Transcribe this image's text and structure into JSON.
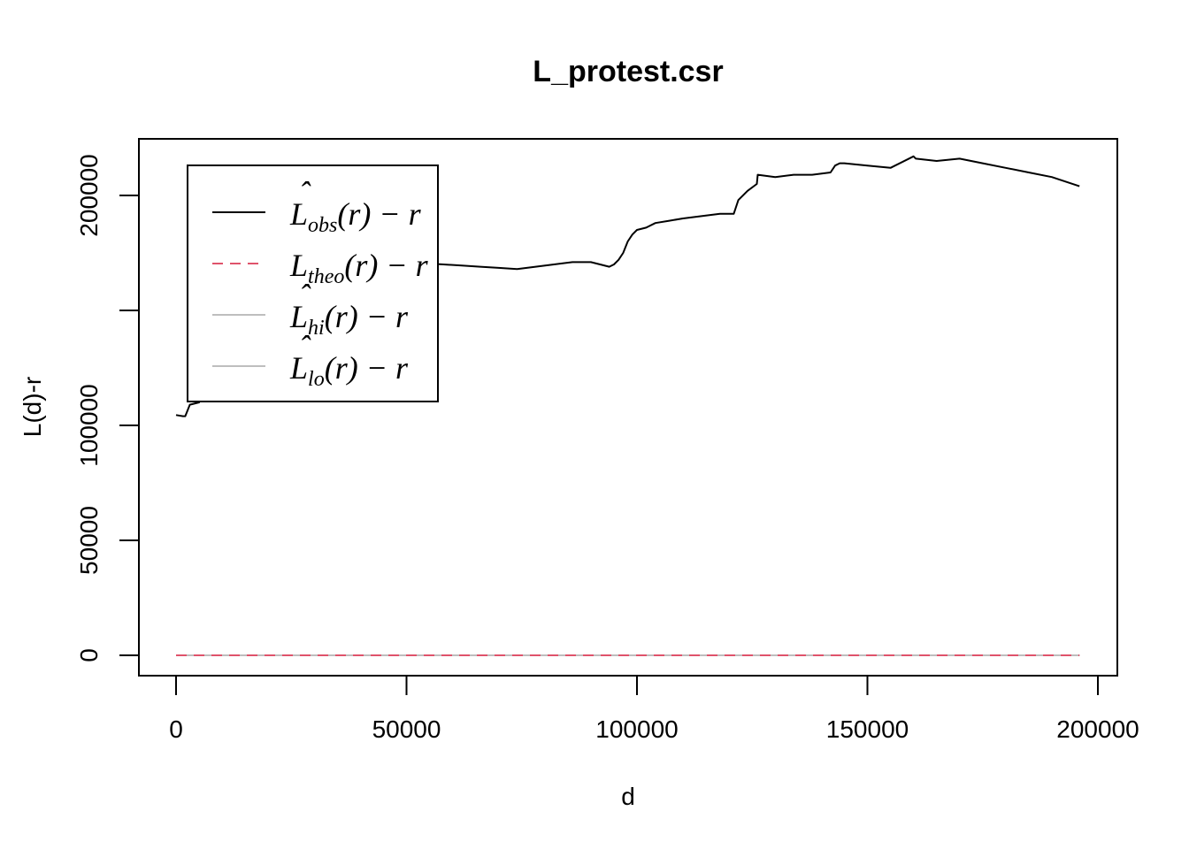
{
  "chart_data": {
    "type": "line",
    "title": "L_protest.csr",
    "xlabel": "d",
    "ylabel": "L(d)-r",
    "xlim": [
      0,
      200000
    ],
    "ylim": [
      0,
      220000
    ],
    "x_ticks": [
      0,
      50000,
      100000,
      150000,
      200000
    ],
    "y_ticks": [
      0,
      50000,
      100000,
      150000,
      200000
    ],
    "x_tick_labels": [
      "0",
      "50000",
      "100000",
      "150000",
      "200000"
    ],
    "y_tick_labels": [
      "0",
      "50000",
      "100000",
      "",
      "200000"
    ],
    "grid": false,
    "legend_position": "top-left",
    "series": [
      {
        "key": "obs",
        "legend_base": "L",
        "legend_sub": "obs",
        "legend_tail": "(r) − r",
        "color": "#000000",
        "dash": "solid",
        "x": [
          0,
          1500,
          2000,
          3000,
          5000,
          5100,
          6000,
          6100,
          8000,
          8100,
          9500,
          10500,
          12000,
          13500,
          15000,
          17000,
          19000,
          21000,
          22500,
          24000,
          24200,
          25000,
          26000,
          30000,
          34000,
          38000,
          42000,
          46000,
          50000,
          54000,
          58000,
          62000,
          66000,
          70000,
          74000,
          78000,
          82000,
          86000,
          90000,
          94000,
          95000,
          96000,
          97000,
          98000,
          99000,
          100000,
          102000,
          104000,
          107000,
          110000,
          114000,
          118000,
          121000,
          122000,
          124000,
          126000,
          126200,
          130000,
          134000,
          138000,
          142000,
          143000,
          144000,
          145000,
          150000,
          155000,
          160000,
          160500,
          165000,
          170000,
          175000,
          180000,
          185000,
          190000,
          196000
        ],
        "y": [
          104500,
          104000,
          104000,
          109000,
          110000,
          119000,
          127000,
          131000,
          133000,
          140000,
          141000,
          143000,
          146000,
          148000,
          151000,
          153000,
          155000,
          157000,
          159000,
          160000,
          172000,
          180000,
          178000,
          176000,
          174000,
          172500,
          172000,
          171500,
          171000,
          170500,
          170000,
          169500,
          169000,
          168500,
          168000,
          169000,
          170000,
          171000,
          171000,
          169000,
          170000,
          172000,
          175000,
          180000,
          183000,
          185000,
          186000,
          188000,
          189000,
          190000,
          191000,
          192000,
          192000,
          198000,
          202000,
          205000,
          209000,
          208000,
          209000,
          209000,
          210000,
          213000,
          214000,
          214000,
          213000,
          212000,
          217000,
          216000,
          215000,
          216000,
          214000,
          212000,
          210000,
          208000,
          204000
        ]
      },
      {
        "key": "theo",
        "legend_base": "L",
        "legend_sub": "theo",
        "legend_tail": "(r) − r",
        "color": "#DF536B",
        "dash": "dashed",
        "x": [
          0,
          196000
        ],
        "y": [
          0,
          0
        ]
      },
      {
        "key": "hi",
        "legend_base": "L",
        "legend_sub": "hi",
        "legend_tail": "(r) − r",
        "color": "#BEBEBE",
        "dash": "solid",
        "x": [
          0,
          196000
        ],
        "y": [
          0,
          0
        ]
      },
      {
        "key": "lo",
        "legend_base": "L",
        "legend_sub": "lo",
        "legend_tail": "(r) − r",
        "color": "#BEBEBE",
        "dash": "solid",
        "x": [
          0,
          196000
        ],
        "y": [
          0,
          0
        ]
      }
    ]
  }
}
